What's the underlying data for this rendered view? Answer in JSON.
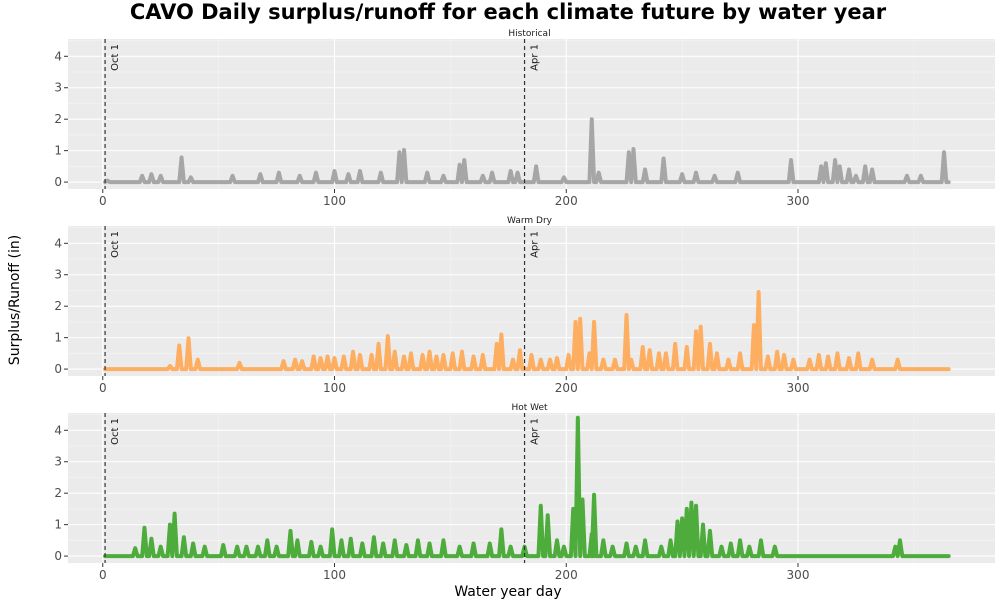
{
  "chart_data": {
    "type": "line",
    "title": "CAVO Daily surplus/runoff for each climate future by water year",
    "xlabel": "Water year day",
    "ylabel": "Surplus/Runoff (in)",
    "xlim": [
      -15,
      385
    ],
    "ylim": [
      -0.22,
      4.55
    ],
    "x_ticks": [
      0,
      100,
      200,
      300
    ],
    "y_ticks": [
      0,
      1,
      2,
      3,
      4
    ],
    "grid": true,
    "reference_lines": [
      {
        "x": 1,
        "label": "Oct 1"
      },
      {
        "x": 182,
        "label": "Apr 1"
      }
    ],
    "facets": [
      {
        "label": "Historical",
        "color": "#a6a6a6",
        "peaks": [
          [
            2,
            0.05
          ],
          [
            17,
            0.2
          ],
          [
            21,
            0.25
          ],
          [
            25,
            0.2
          ],
          [
            34,
            0.78
          ],
          [
            38,
            0.15
          ],
          [
            56,
            0.2
          ],
          [
            68,
            0.25
          ],
          [
            76,
            0.3
          ],
          [
            85,
            0.2
          ],
          [
            92,
            0.3
          ],
          [
            100,
            0.35
          ],
          [
            106,
            0.25
          ],
          [
            111,
            0.35
          ],
          [
            120,
            0.3
          ],
          [
            128,
            0.95
          ],
          [
            130,
            1.02
          ],
          [
            140,
            0.3
          ],
          [
            147,
            0.2
          ],
          [
            154,
            0.55
          ],
          [
            156,
            0.7
          ],
          [
            164,
            0.2
          ],
          [
            168,
            0.3
          ],
          [
            176,
            0.35
          ],
          [
            179,
            0.3
          ],
          [
            187,
            0.5
          ],
          [
            199,
            0.15
          ],
          [
            211,
            2.0
          ],
          [
            214,
            0.3
          ],
          [
            227,
            0.95
          ],
          [
            229,
            1.05
          ],
          [
            234,
            0.4
          ],
          [
            242,
            0.75
          ],
          [
            250,
            0.25
          ],
          [
            256,
            0.3
          ],
          [
            264,
            0.2
          ],
          [
            274,
            0.3
          ],
          [
            297,
            0.7
          ],
          [
            310,
            0.5
          ],
          [
            312,
            0.6
          ],
          [
            316,
            0.7
          ],
          [
            318,
            0.5
          ],
          [
            322,
            0.4
          ],
          [
            325,
            0.2
          ],
          [
            329,
            0.5
          ],
          [
            332,
            0.4
          ],
          [
            347,
            0.2
          ],
          [
            353,
            0.2
          ],
          [
            363,
            0.95
          ]
        ]
      },
      {
        "label": "Warm Dry",
        "color": "#fdae61",
        "peaks": [
          [
            29,
            0.1
          ],
          [
            33,
            0.75
          ],
          [
            37,
            0.98
          ],
          [
            41,
            0.3
          ],
          [
            59,
            0.2
          ],
          [
            78,
            0.25
          ],
          [
            83,
            0.3
          ],
          [
            86,
            0.25
          ],
          [
            91,
            0.4
          ],
          [
            94,
            0.35
          ],
          [
            97,
            0.4
          ],
          [
            100,
            0.35
          ],
          [
            104,
            0.4
          ],
          [
            108,
            0.55
          ],
          [
            111,
            0.45
          ],
          [
            116,
            0.45
          ],
          [
            119,
            0.8
          ],
          [
            123,
            1.05
          ],
          [
            126,
            0.55
          ],
          [
            130,
            0.4
          ],
          [
            133,
            0.5
          ],
          [
            138,
            0.45
          ],
          [
            141,
            0.55
          ],
          [
            144,
            0.4
          ],
          [
            147,
            0.45
          ],
          [
            151,
            0.5
          ],
          [
            155,
            0.55
          ],
          [
            160,
            0.4
          ],
          [
            164,
            0.45
          ],
          [
            170,
            0.8
          ],
          [
            172,
            1.1
          ],
          [
            177,
            0.3
          ],
          [
            180,
            0.6
          ],
          [
            185,
            0.45
          ],
          [
            189,
            0.3
          ],
          [
            193,
            0.3
          ],
          [
            196,
            0.35
          ],
          [
            201,
            0.45
          ],
          [
            204,
            1.5
          ],
          [
            206,
            1.6
          ],
          [
            210,
            0.5
          ],
          [
            212,
            1.5
          ],
          [
            216,
            0.3
          ],
          [
            221,
            0.3
          ],
          [
            226,
            1.72
          ],
          [
            228,
            0.3
          ],
          [
            233,
            0.7
          ],
          [
            236,
            0.6
          ],
          [
            240,
            0.5
          ],
          [
            243,
            0.5
          ],
          [
            247,
            0.8
          ],
          [
            252,
            0.7
          ],
          [
            256,
            1.2
          ],
          [
            258,
            1.35
          ],
          [
            262,
            0.8
          ],
          [
            265,
            0.5
          ],
          [
            270,
            0.3
          ],
          [
            275,
            0.5
          ],
          [
            281,
            1.4
          ],
          [
            283,
            2.45
          ],
          [
            287,
            0.4
          ],
          [
            291,
            0.55
          ],
          [
            294,
            0.45
          ],
          [
            298,
            0.3
          ],
          [
            305,
            0.3
          ],
          [
            309,
            0.45
          ],
          [
            313,
            0.4
          ],
          [
            317,
            0.5
          ],
          [
            322,
            0.35
          ],
          [
            326,
            0.5
          ],
          [
            332,
            0.3
          ],
          [
            343,
            0.3
          ]
        ]
      },
      {
        "label": "Hot Wet",
        "color": "#4dac3c",
        "peaks": [
          [
            14,
            0.25
          ],
          [
            18,
            0.9
          ],
          [
            21,
            0.55
          ],
          [
            25,
            0.3
          ],
          [
            29,
            1.0
          ],
          [
            31,
            1.35
          ],
          [
            35,
            0.6
          ],
          [
            39,
            0.4
          ],
          [
            44,
            0.3
          ],
          [
            52,
            0.35
          ],
          [
            58,
            0.3
          ],
          [
            62,
            0.3
          ],
          [
            67,
            0.3
          ],
          [
            71,
            0.5
          ],
          [
            75,
            0.3
          ],
          [
            81,
            0.8
          ],
          [
            84,
            0.5
          ],
          [
            90,
            0.45
          ],
          [
            94,
            0.3
          ],
          [
            99,
            0.85
          ],
          [
            103,
            0.5
          ],
          [
            107,
            0.55
          ],
          [
            112,
            0.4
          ],
          [
            117,
            0.6
          ],
          [
            121,
            0.4
          ],
          [
            126,
            0.5
          ],
          [
            131,
            0.35
          ],
          [
            136,
            0.5
          ],
          [
            141,
            0.4
          ],
          [
            147,
            0.5
          ],
          [
            154,
            0.3
          ],
          [
            160,
            0.4
          ],
          [
            167,
            0.4
          ],
          [
            172,
            0.85
          ],
          [
            176,
            0.3
          ],
          [
            182,
            0.3
          ],
          [
            189,
            1.6
          ],
          [
            192,
            1.3
          ],
          [
            196,
            0.5
          ],
          [
            199,
            0.3
          ],
          [
            203,
            1.5
          ],
          [
            205,
            4.4
          ],
          [
            207,
            1.8
          ],
          [
            211,
            0.7
          ],
          [
            212,
            1.95
          ],
          [
            216,
            0.5
          ],
          [
            220,
            0.3
          ],
          [
            226,
            0.4
          ],
          [
            230,
            0.3
          ],
          [
            234,
            0.5
          ],
          [
            241,
            0.3
          ],
          [
            245,
            0.5
          ],
          [
            248,
            1.1
          ],
          [
            250,
            1.2
          ],
          [
            252,
            1.5
          ],
          [
            254,
            1.7
          ],
          [
            256,
            1.6
          ],
          [
            259,
            1.0
          ],
          [
            262,
            0.8
          ],
          [
            267,
            0.3
          ],
          [
            271,
            0.4
          ],
          [
            275,
            0.5
          ],
          [
            279,
            0.3
          ],
          [
            284,
            0.5
          ],
          [
            290,
            0.3
          ],
          [
            342,
            0.3
          ],
          [
            344,
            0.5
          ]
        ]
      }
    ]
  }
}
